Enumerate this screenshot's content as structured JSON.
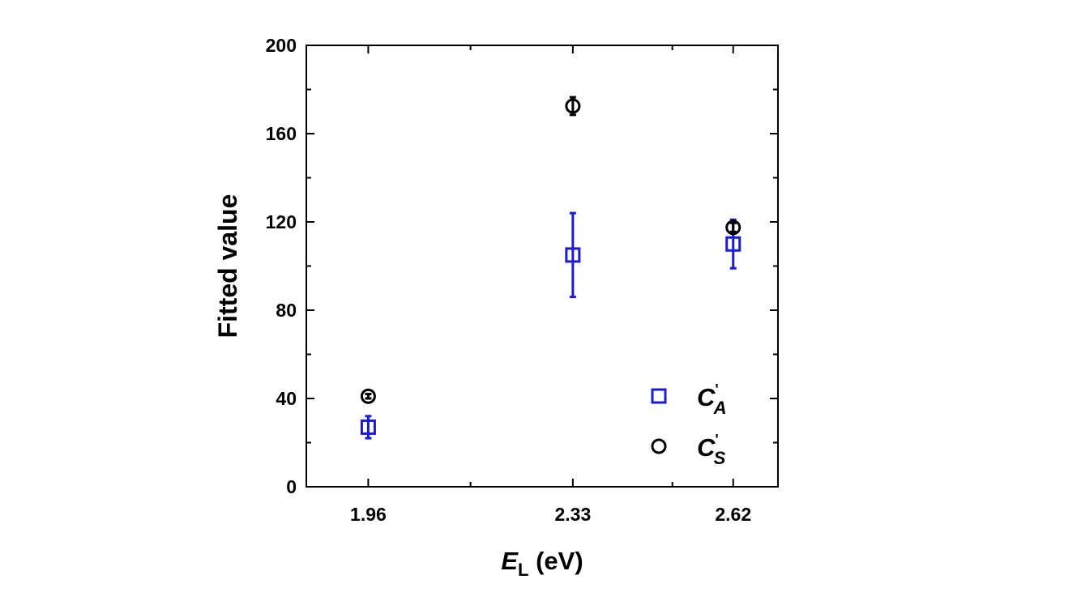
{
  "chart_data": {
    "type": "scatter",
    "x_label": "EL (eV)",
    "y_label": "Fitted value",
    "xlim": [
      1.848,
      2.701
    ],
    "ylim": [
      0,
      200
    ],
    "xticks": [
      1.96,
      2.33,
      2.62
    ],
    "xminorticks": [
      2.145,
      2.51
    ],
    "yticks": [
      0,
      40,
      80,
      120,
      160,
      200
    ],
    "yminorticks": [
      20,
      60,
      100,
      140,
      180
    ],
    "legend": "lower right",
    "series": [
      {
        "name": "C'A",
        "color": "#1a1adc",
        "marker": "square",
        "x": [
          1.96,
          2.33,
          2.62
        ],
        "values": [
          27,
          105,
          110
        ],
        "errors": [
          5,
          19,
          11
        ]
      },
      {
        "name": "C'S",
        "color": "#000000",
        "marker": "circle",
        "x": [
          1.96,
          2.33,
          2.62
        ],
        "values": [
          41,
          172.5,
          117.5
        ],
        "errors": [
          1,
          4,
          2
        ]
      }
    ]
  }
}
